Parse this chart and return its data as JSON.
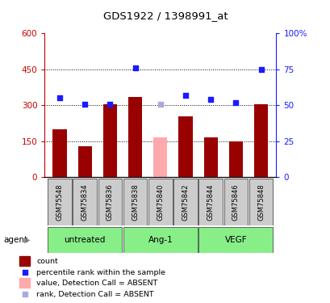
{
  "title": "GDS1922 / 1398991_at",
  "samples": [
    "GSM75548",
    "GSM75834",
    "GSM75836",
    "GSM75838",
    "GSM75840",
    "GSM75842",
    "GSM75844",
    "GSM75846",
    "GSM75848"
  ],
  "bar_values": [
    200,
    130,
    305,
    335,
    165,
    255,
    165,
    150,
    305
  ],
  "bar_absent": [
    false,
    false,
    false,
    false,
    true,
    false,
    false,
    false,
    false
  ],
  "rank_values": [
    55,
    51,
    51,
    76,
    51,
    57,
    54,
    52,
    75
  ],
  "rank_absent": [
    false,
    false,
    false,
    false,
    true,
    false,
    false,
    false,
    false
  ],
  "left_ylim": [
    0,
    600
  ],
  "right_ylim": [
    0,
    100
  ],
  "left_yticks": [
    0,
    150,
    300,
    450,
    600
  ],
  "right_yticks": [
    0,
    25,
    50,
    75,
    100
  ],
  "right_yticklabels": [
    "0",
    "25",
    "50",
    "75",
    "100%"
  ],
  "left_yticklabels": [
    "0",
    "150",
    "300",
    "450",
    "600"
  ],
  "groups": [
    {
      "label": "untreated",
      "indices": [
        0,
        1,
        2
      ]
    },
    {
      "label": "Ang-1",
      "indices": [
        3,
        4,
        5
      ]
    },
    {
      "label": "VEGF",
      "indices": [
        6,
        7,
        8
      ]
    }
  ],
  "bar_color_present": "#990000",
  "bar_color_absent": "#ffaaaa",
  "rank_color_present": "#1a1aff",
  "rank_color_absent": "#aaaadd",
  "group_bg_color": "#cccccc",
  "group_label_bg": "#88ee88",
  "agent_label": "agent",
  "legend_items": [
    {
      "label": "count",
      "color": "#990000",
      "type": "bar"
    },
    {
      "label": "percentile rank within the sample",
      "color": "#1a1aff",
      "type": "square"
    },
    {
      "label": "value, Detection Call = ABSENT",
      "color": "#ffaaaa",
      "type": "bar"
    },
    {
      "label": "rank, Detection Call = ABSENT",
      "color": "#aaaadd",
      "type": "square"
    }
  ],
  "figsize": [
    4.1,
    3.75
  ],
  "dpi": 100
}
